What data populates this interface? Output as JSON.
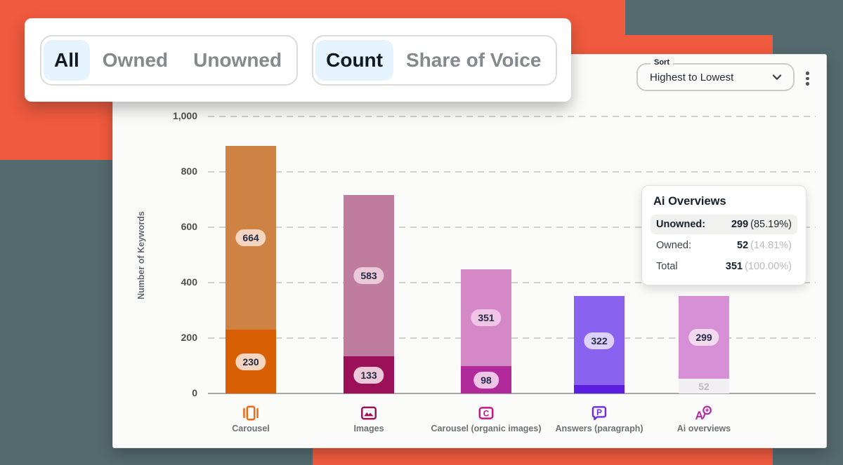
{
  "background": {
    "teal": "#546A6E",
    "orange": "#F05A3E"
  },
  "toolbar": {
    "selected_bg": "#E5F4FC",
    "groups": [
      {
        "name": "ownership",
        "options": [
          {
            "label": "All",
            "selected": true
          },
          {
            "label": "Owned",
            "selected": false
          },
          {
            "label": "Unowned",
            "selected": false
          }
        ]
      },
      {
        "name": "metric",
        "options": [
          {
            "label": "Count",
            "selected": true
          },
          {
            "label": "Share of Voice",
            "selected": false
          }
        ]
      }
    ]
  },
  "sort": {
    "label": "Sort",
    "value": "Highest to Lowest"
  },
  "tooltip": {
    "title": "Ai Overviews",
    "rows": [
      {
        "label": "Unowned:",
        "value": "299",
        "pct": "(85.19%)",
        "highlight": true
      },
      {
        "label": "Owned:",
        "value": "52",
        "pct": "(14.81%)",
        "highlight": false
      },
      {
        "label": "Total",
        "value": "351",
        "pct": "(100.00%)",
        "highlight": false
      }
    ]
  },
  "chart_data": {
    "type": "bar",
    "stacked": true,
    "title": "",
    "xlabel": "",
    "ylabel": "Number of Keywords",
    "ylim": [
      0,
      1000
    ],
    "grid": "dashed-horizontal",
    "legend": "none",
    "yticks": [
      {
        "value": 0,
        "label": "0"
      },
      {
        "value": 200,
        "label": "200"
      },
      {
        "value": 400,
        "label": "400"
      },
      {
        "value": 600,
        "label": "600"
      },
      {
        "value": 800,
        "label": "800"
      },
      {
        "value": 1000,
        "label": "1,000"
      }
    ],
    "categories": [
      "Carousel",
      "Images",
      "Carousel (organic images)",
      "Answers (paragraph)",
      "Ai overviews"
    ],
    "series": [
      {
        "name": "Owned",
        "values": [
          230,
          133,
          98,
          30,
          52
        ]
      },
      {
        "name": "Unowned",
        "values": [
          664,
          583,
          351,
          322,
          299
        ]
      }
    ],
    "segment_labels": {
      "Owned": [
        "230",
        "133",
        "98",
        "",
        "52"
      ],
      "Unowned": [
        "664",
        "583",
        "351",
        "322",
        "299"
      ]
    },
    "bar_styles": [
      {
        "owned": "#D85F04",
        "unowned": "#CE8243",
        "pill": "#F5D5C0",
        "icon": "carousel-icon",
        "icon_color": "#ED6C13",
        "owned_label_plain": false
      },
      {
        "owned": "#9B1058",
        "unowned": "#BF7C9E",
        "pill": "#EBC9D8",
        "icon": "images-icon",
        "icon_color": "#9C1259",
        "owned_label_plain": false
      },
      {
        "owned": "#B02A99",
        "unowned": "#D588C6",
        "pill": "#EFC4E6",
        "icon": "carousel-organic-icon",
        "icon_color": "#C2188B",
        "owned_label_plain": false
      },
      {
        "owned": "#5B1EE0",
        "unowned": "#8A62F0",
        "pill": "#DCD2F9",
        "icon": "answers-paragraph-icon",
        "icon_color": "#6D2AF2",
        "owned_label_plain": false
      },
      {
        "owned": "#F1EFF1",
        "unowned": "#D78FD5",
        "pill": "#F3D8F0",
        "icon": "ai-overviews-icon",
        "icon_color": "#B32AA0",
        "owned_label_plain": true
      }
    ]
  }
}
